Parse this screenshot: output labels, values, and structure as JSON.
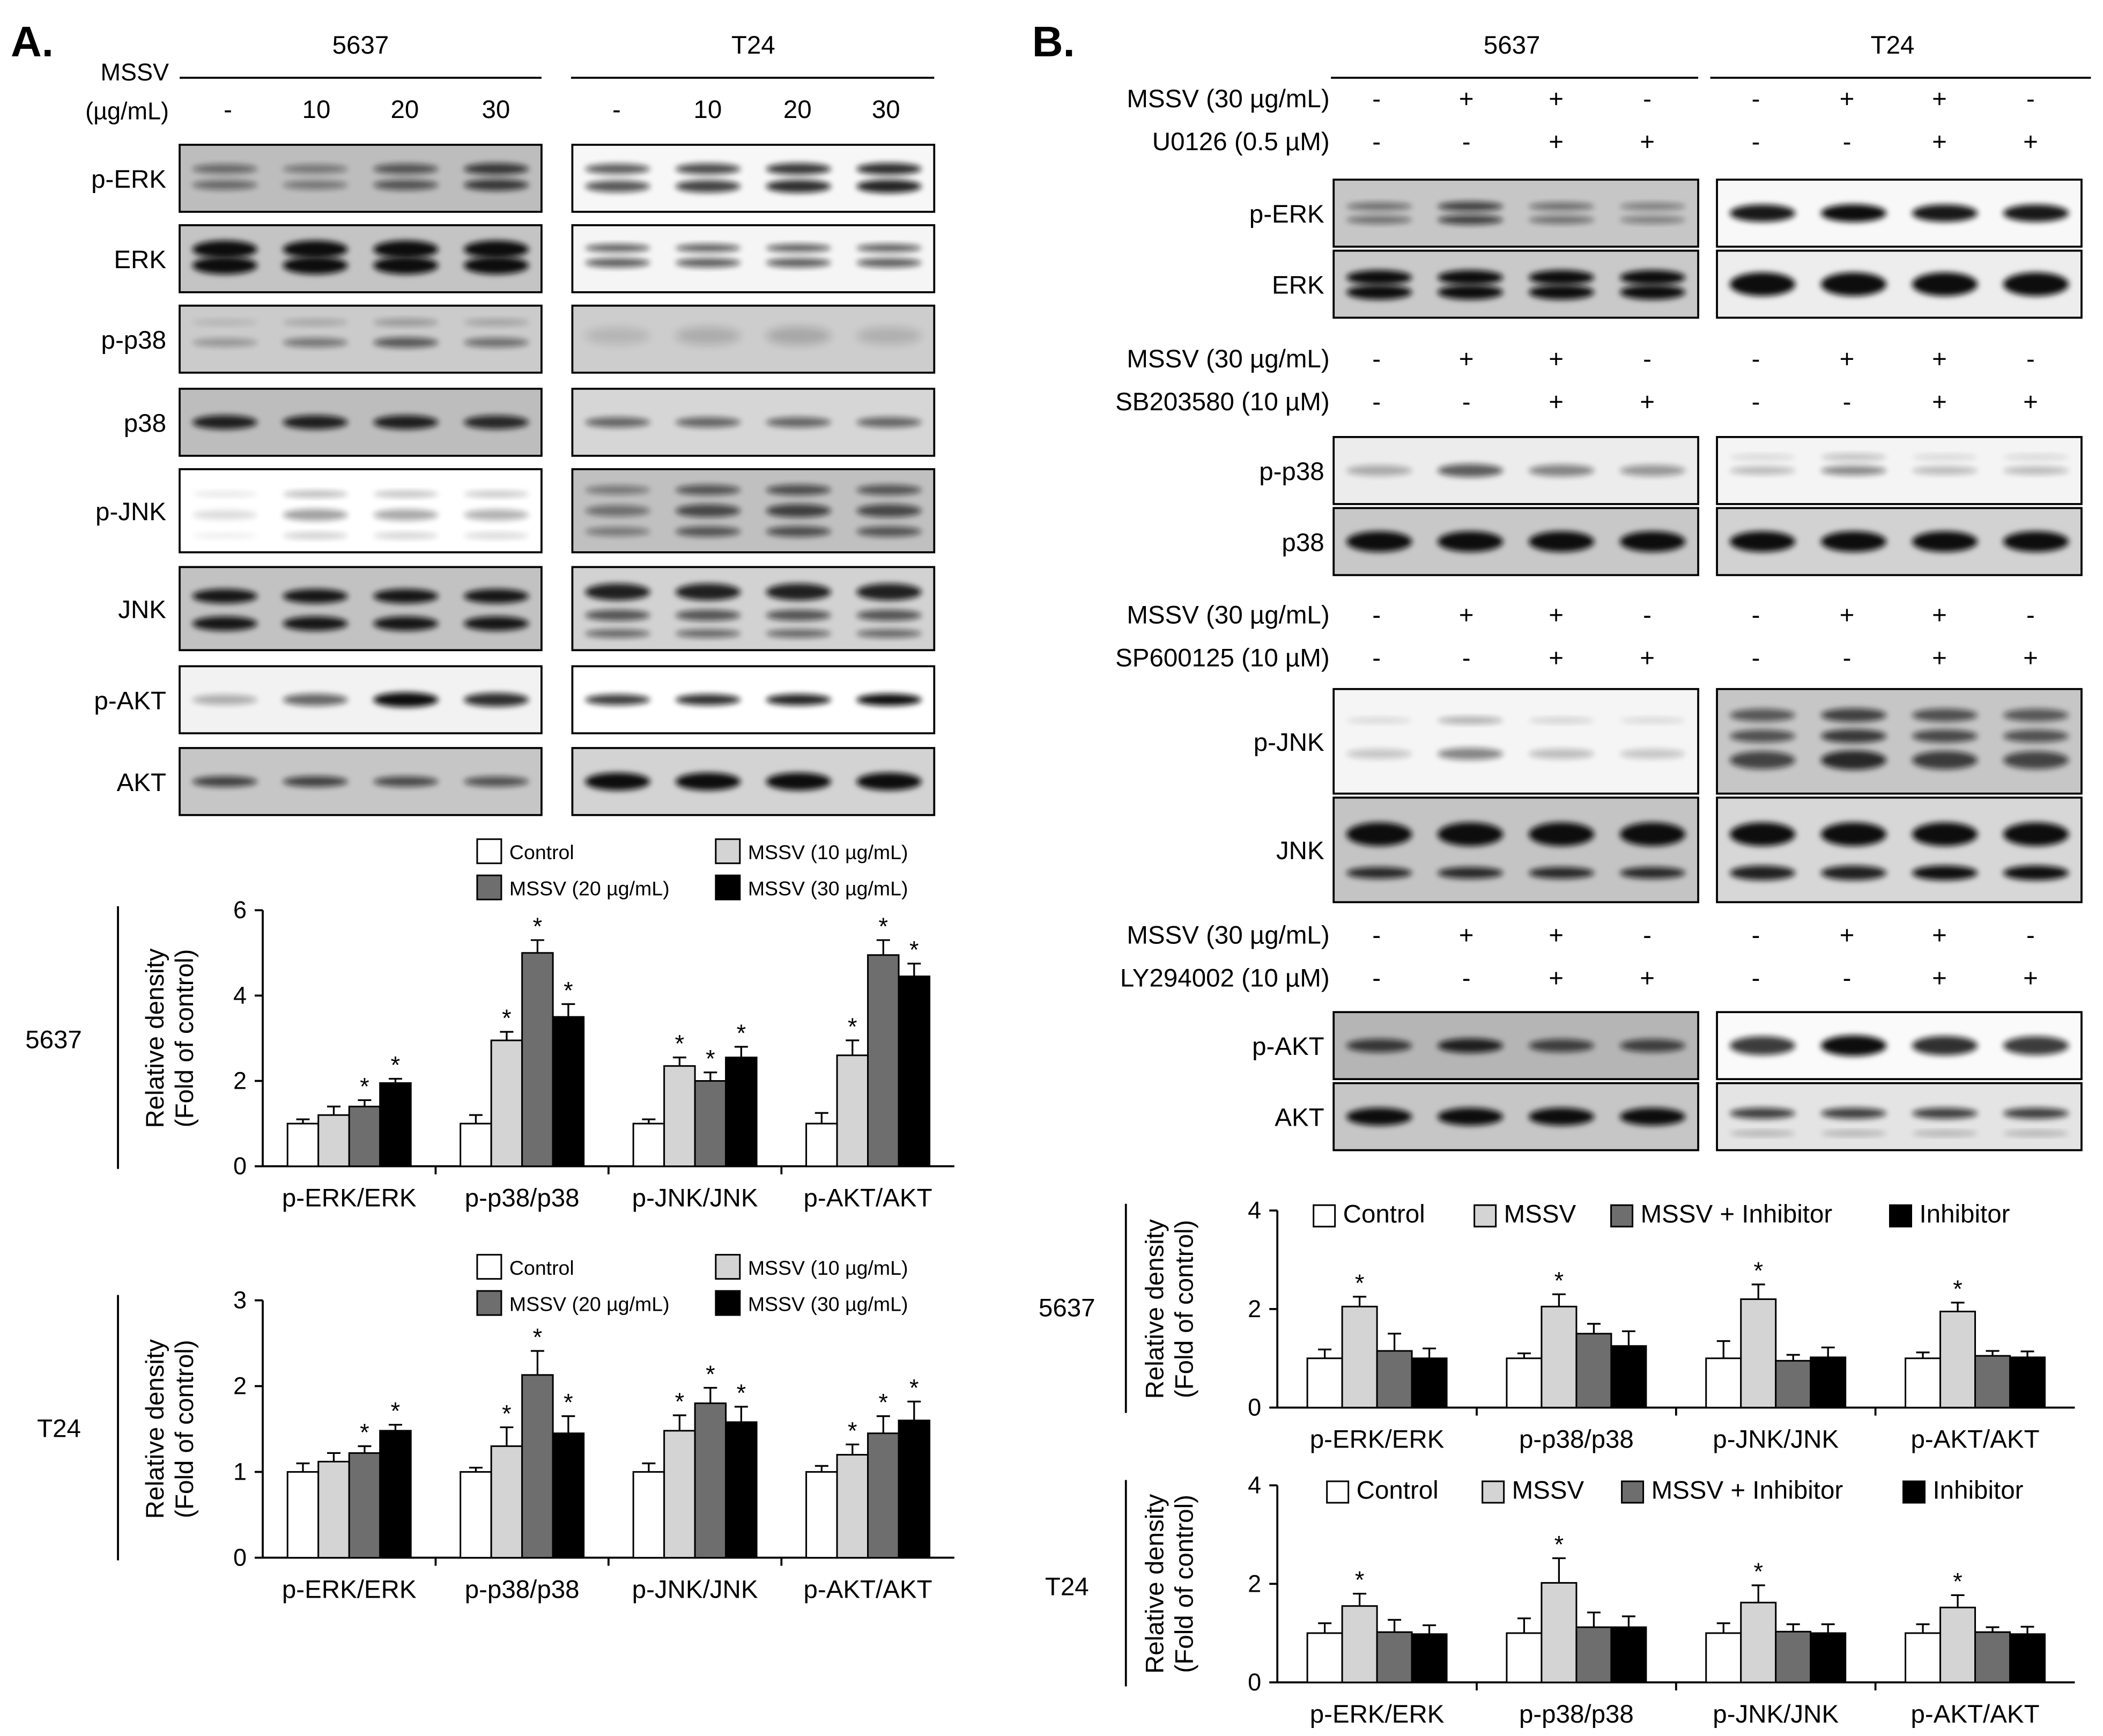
{
  "panelA": {
    "letter": "A.",
    "cell_headers": [
      "5637",
      "T24"
    ],
    "treatment_label": [
      "MSSV",
      "(µg/mL)"
    ],
    "doses": [
      "-",
      "10",
      "20",
      "30"
    ],
    "blot_labels": [
      "p-ERK",
      "ERK",
      "p-p38",
      "p38",
      "p-JNK",
      "JNK",
      "p-AKT",
      "AKT"
    ]
  },
  "panelB": {
    "letter": "B.",
    "cell_headers": [
      "5637",
      "T24"
    ],
    "groups": [
      {
        "rows": [
          {
            "label": "MSSV (30 µg/mL)",
            "signs": [
              "-",
              "+",
              "+",
              "-"
            ]
          },
          {
            "label": "U0126 (0.5 µM)",
            "signs": [
              "-",
              "-",
              "+",
              "+"
            ]
          }
        ],
        "blots": [
          "p-ERK",
          "ERK"
        ]
      },
      {
        "rows": [
          {
            "label": "MSSV (30 µg/mL)",
            "signs": [
              "-",
              "+",
              "+",
              "-"
            ]
          },
          {
            "label": "SB203580 (10 µM)",
            "signs": [
              "-",
              "-",
              "+",
              "+"
            ]
          }
        ],
        "blots": [
          "p-p38",
          "p38"
        ]
      },
      {
        "rows": [
          {
            "label": "MSSV (30 µg/mL)",
            "signs": [
              "-",
              "+",
              "+",
              "-"
            ]
          },
          {
            "label": "SP600125 (10 µM)",
            "signs": [
              "-",
              "-",
              "+",
              "+"
            ]
          }
        ],
        "blots": [
          "p-JNK",
          "JNK"
        ]
      },
      {
        "rows": [
          {
            "label": "MSSV (30 µg/mL)",
            "signs": [
              "-",
              "+",
              "+",
              "-"
            ]
          },
          {
            "label": "LY294002 (10 µM)",
            "signs": [
              "-",
              "-",
              "+",
              "+"
            ]
          }
        ],
        "blots": [
          "p-AKT",
          "AKT"
        ]
      }
    ]
  },
  "colors": {
    "control": "#ffffff",
    "light": "#d4d4d4",
    "mid": "#6e6e6e",
    "dark": "#000000"
  },
  "chart_data": [
    {
      "type": "bar",
      "panel": "A",
      "cell_line": "5637",
      "ylabel": [
        "Relative density",
        "(Fold of control)"
      ],
      "categories": [
        "p-ERK/ERK",
        "p-p38/p38",
        "p-JNK/JNK",
        "p-AKT/AKT"
      ],
      "ylim": [
        0,
        6
      ],
      "yticks": [
        0,
        2,
        4,
        6
      ],
      "series": [
        {
          "name": "Control",
          "values": [
            1.0,
            1.0,
            1.0,
            1.0
          ],
          "errors": [
            0.1,
            0.2,
            0.1,
            0.25
          ],
          "sig": [
            false,
            false,
            false,
            false
          ]
        },
        {
          "name": "MSSV (10 µg/mL)",
          "values": [
            1.2,
            2.95,
            2.35,
            2.6
          ],
          "errors": [
            0.2,
            0.2,
            0.2,
            0.35
          ],
          "sig": [
            false,
            true,
            true,
            true
          ]
        },
        {
          "name": "MSSV (20 µg/mL)",
          "values": [
            1.4,
            5.0,
            2.0,
            4.95
          ],
          "errors": [
            0.15,
            0.3,
            0.2,
            0.35
          ],
          "sig": [
            true,
            true,
            true,
            true
          ]
        },
        {
          "name": "MSSV (30 µg/mL)",
          "values": [
            1.95,
            3.5,
            2.55,
            4.45
          ],
          "errors": [
            0.1,
            0.3,
            0.25,
            0.3
          ],
          "sig": [
            true,
            true,
            true,
            true
          ]
        }
      ]
    },
    {
      "type": "bar",
      "panel": "A",
      "cell_line": "T24",
      "ylabel": [
        "Relative density",
        "(Fold of control)"
      ],
      "categories": [
        "p-ERK/ERK",
        "p-p38/p38",
        "p-JNK/JNK",
        "p-AKT/AKT"
      ],
      "ylim": [
        0,
        3
      ],
      "yticks": [
        0,
        1,
        2,
        3
      ],
      "series": [
        {
          "name": "Control",
          "values": [
            1.0,
            1.0,
            1.0,
            1.0
          ],
          "errors": [
            0.1,
            0.05,
            0.1,
            0.07
          ],
          "sig": [
            false,
            false,
            false,
            false
          ]
        },
        {
          "name": "MSSV (10 µg/mL)",
          "values": [
            1.12,
            1.3,
            1.48,
            1.2
          ],
          "errors": [
            0.1,
            0.22,
            0.18,
            0.12
          ],
          "sig": [
            false,
            true,
            true,
            true
          ]
        },
        {
          "name": "MSSV (20 µg/mL)",
          "values": [
            1.22,
            2.13,
            1.8,
            1.45
          ],
          "errors": [
            0.08,
            0.28,
            0.18,
            0.2
          ],
          "sig": [
            true,
            true,
            true,
            true
          ]
        },
        {
          "name": "MSSV (30 µg/mL)",
          "values": [
            1.48,
            1.45,
            1.58,
            1.6
          ],
          "errors": [
            0.07,
            0.2,
            0.18,
            0.22
          ],
          "sig": [
            true,
            true,
            true,
            true
          ]
        }
      ]
    },
    {
      "type": "bar",
      "panel": "B",
      "cell_line": "5637",
      "ylabel": [
        "Relative density",
        "(Fold of control)"
      ],
      "categories": [
        "p-ERK/ERK",
        "p-p38/p38",
        "p-JNK/JNK",
        "p-AKT/AKT"
      ],
      "ylim": [
        0,
        4
      ],
      "yticks": [
        0,
        2,
        4
      ],
      "series": [
        {
          "name": "Control",
          "values": [
            1.0,
            1.0,
            1.0,
            1.0
          ],
          "errors": [
            0.18,
            0.1,
            0.35,
            0.12
          ],
          "sig": [
            false,
            false,
            false,
            false
          ]
        },
        {
          "name": "MSSV",
          "values": [
            2.05,
            2.05,
            2.2,
            1.95
          ],
          "errors": [
            0.2,
            0.25,
            0.3,
            0.18
          ],
          "sig": [
            true,
            true,
            true,
            true
          ]
        },
        {
          "name": "MSSV + Inhibitor",
          "values": [
            1.15,
            1.5,
            0.95,
            1.05
          ],
          "errors": [
            0.35,
            0.2,
            0.12,
            0.1
          ],
          "sig": [
            false,
            false,
            false,
            false
          ]
        },
        {
          "name": "Inhibitor",
          "values": [
            1.0,
            1.25,
            1.02,
            1.02
          ],
          "errors": [
            0.2,
            0.3,
            0.2,
            0.12
          ],
          "sig": [
            false,
            false,
            false,
            false
          ]
        }
      ]
    },
    {
      "type": "bar",
      "panel": "B",
      "cell_line": "T24",
      "ylabel": [
        "Relative density",
        "(Fold of control)"
      ],
      "categories": [
        "p-ERK/ERK",
        "p-p38/p38",
        "p-JNK/JNK",
        "p-AKT/AKT"
      ],
      "ylim": [
        0,
        4
      ],
      "yticks": [
        0,
        2,
        4
      ],
      "series": [
        {
          "name": "Control",
          "values": [
            1.0,
            1.0,
            1.0,
            1.0
          ],
          "errors": [
            0.2,
            0.3,
            0.2,
            0.18
          ],
          "sig": [
            false,
            false,
            false,
            false
          ]
        },
        {
          "name": "MSSV",
          "values": [
            1.55,
            2.02,
            1.62,
            1.52
          ],
          "errors": [
            0.25,
            0.5,
            0.35,
            0.25
          ],
          "sig": [
            true,
            true,
            true,
            true
          ]
        },
        {
          "name": "MSSV + Inhibitor",
          "values": [
            1.02,
            1.12,
            1.03,
            1.02
          ],
          "errors": [
            0.25,
            0.3,
            0.15,
            0.1
          ],
          "sig": [
            false,
            false,
            false,
            false
          ]
        },
        {
          "name": "Inhibitor",
          "values": [
            0.98,
            1.12,
            1.0,
            0.98
          ],
          "errors": [
            0.18,
            0.22,
            0.18,
            0.15
          ],
          "sig": [
            false,
            false,
            false,
            false
          ]
        }
      ]
    }
  ]
}
